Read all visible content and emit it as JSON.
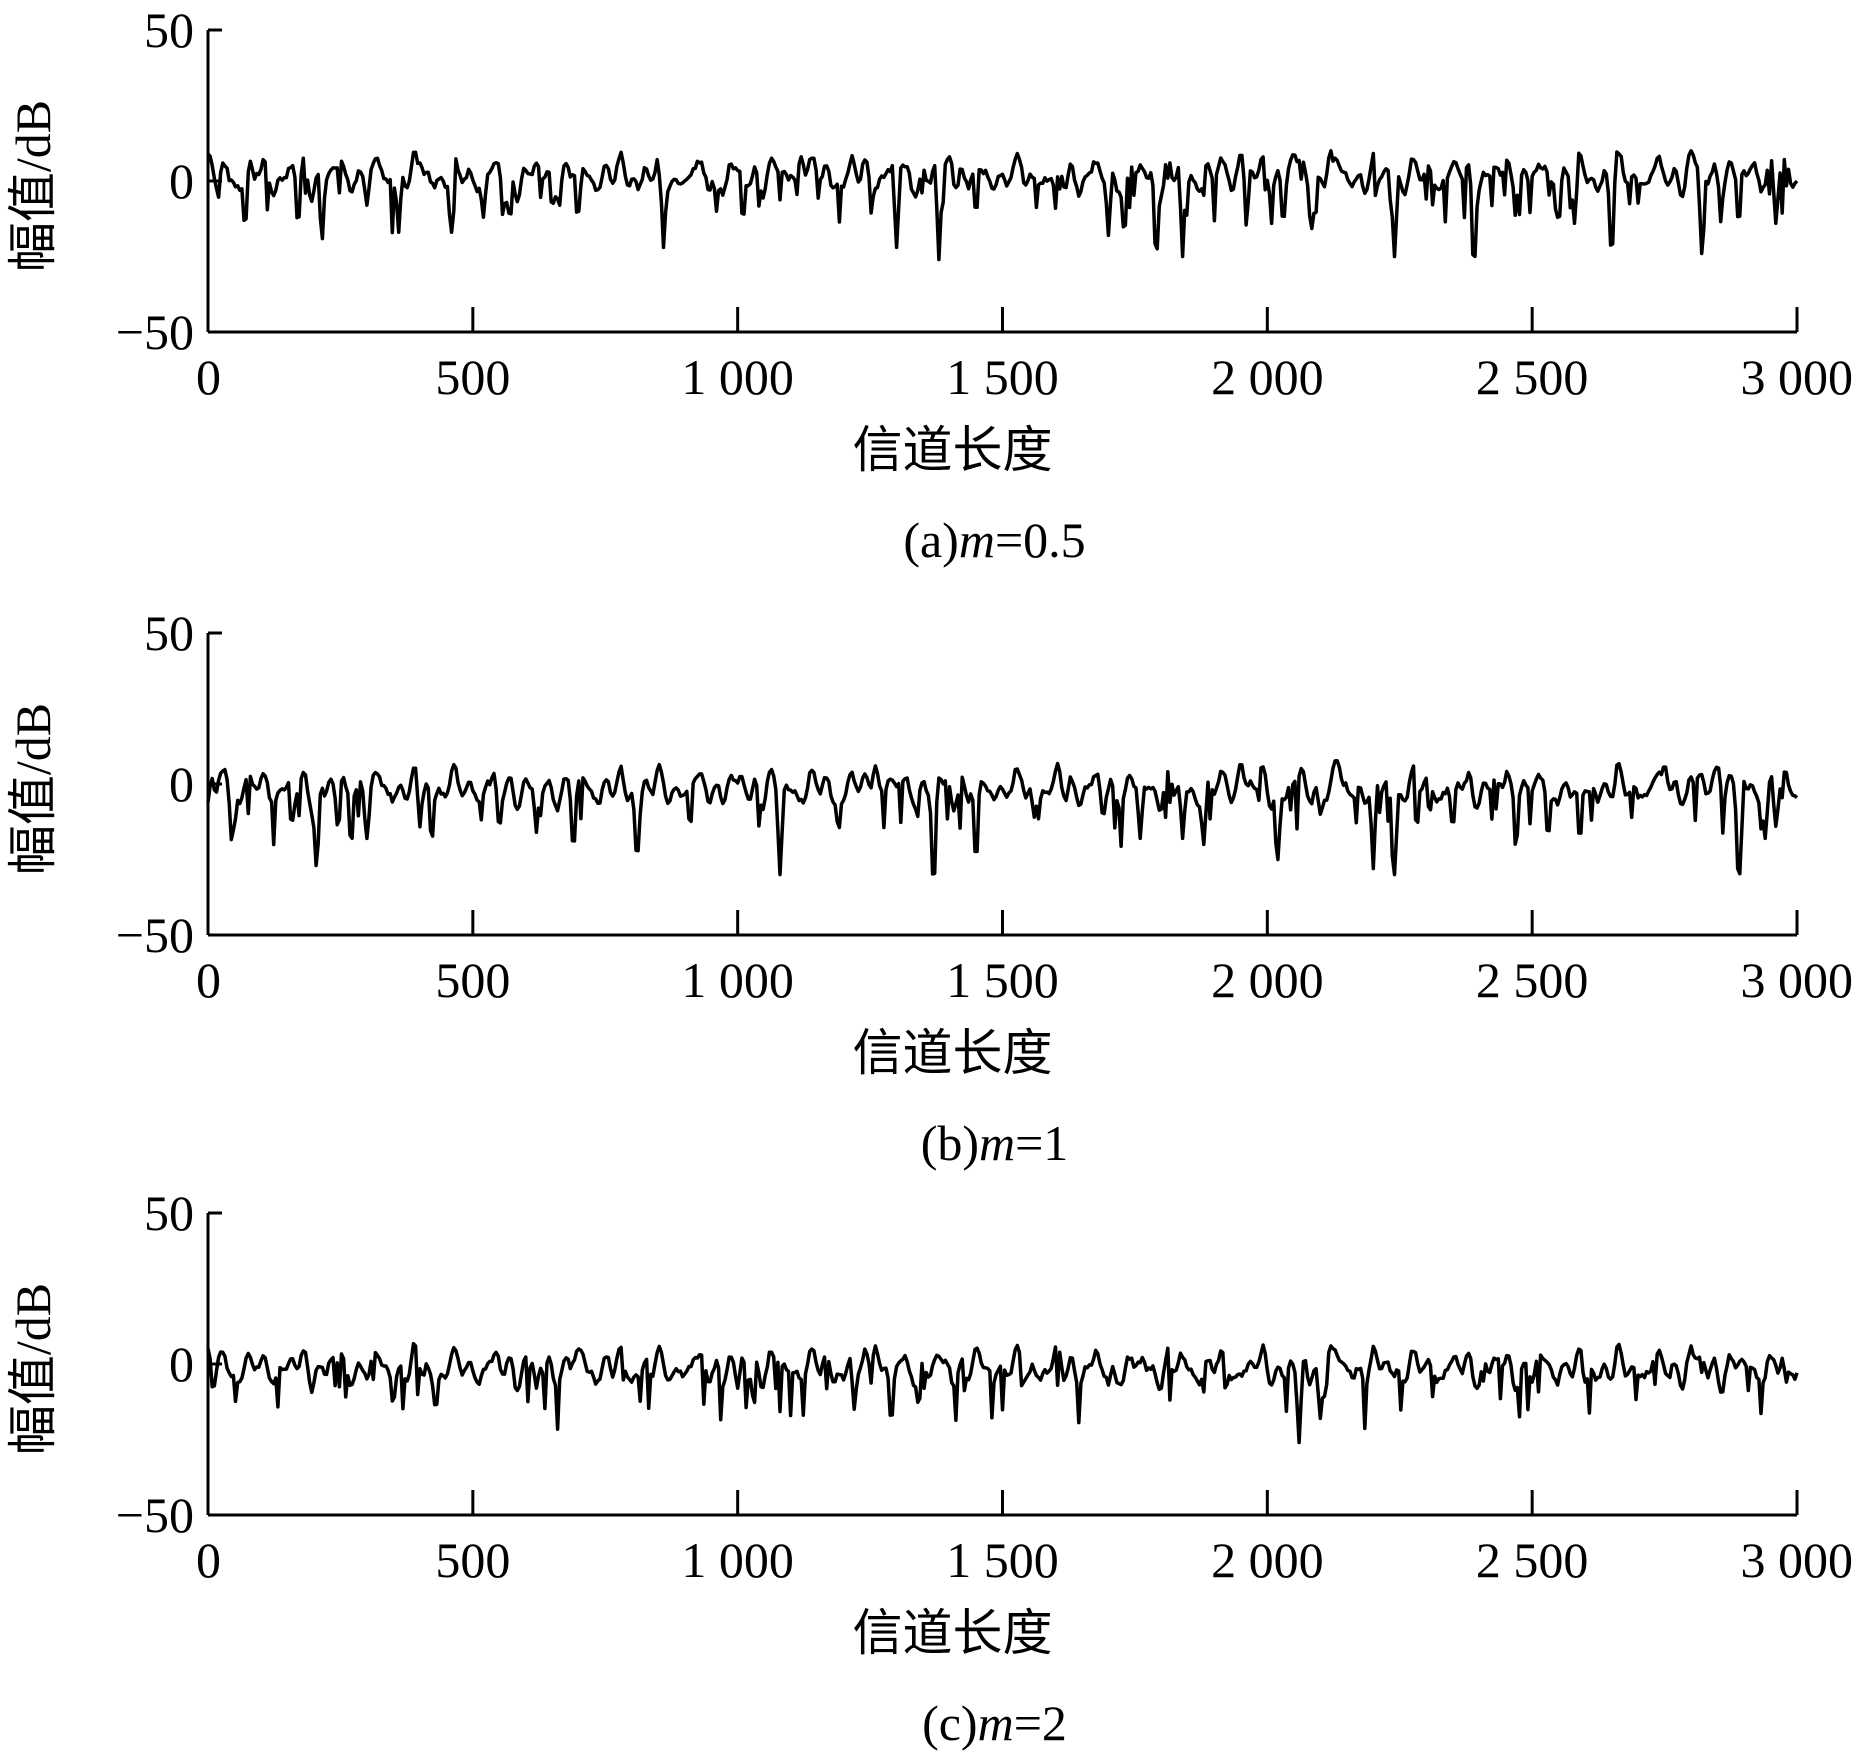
{
  "figure": {
    "panels": [
      {
        "caption_prefix": "(a)",
        "caption_var": "m",
        "caption_suffix": "=0.5"
      },
      {
        "caption_prefix": "(b)",
        "caption_var": "m",
        "caption_suffix": "=1"
      },
      {
        "caption_prefix": "(c)",
        "caption_var": "m",
        "caption_suffix": "=2"
      }
    ]
  },
  "chart_data": [
    {
      "type": "line",
      "xlabel": "信道长度",
      "ylabel": "幅值/dB",
      "xlim": [
        0,
        3000
      ],
      "ylim": [
        -50,
        50
      ],
      "xticks": [
        0,
        500,
        1000,
        1500,
        2000,
        2500,
        3000
      ],
      "xtick_labels": [
        "0",
        "500",
        "1 000",
        "1 500",
        "2 000",
        "2 500",
        "3 000"
      ],
      "yticks": [
        50,
        0,
        -50
      ],
      "ytick_labels": [
        "50",
        "0",
        "−50"
      ],
      "grid": false,
      "series": [
        {
          "color": "#000000",
          "baseline": 3,
          "dips": [
            [
              20,
              -8
            ],
            [
              70,
              -16
            ],
            [
              170,
              -15
            ],
            [
              215,
              -20
            ],
            [
              300,
              -8
            ],
            [
              360,
              -17
            ],
            [
              460,
              -17
            ],
            [
              520,
              -12
            ],
            [
              570,
              -14
            ],
            [
              650,
              -9
            ],
            [
              700,
              -10
            ],
            [
              860,
              -22
            ],
            [
              960,
              -10
            ],
            [
              1010,
              -14
            ],
            [
              1300,
              -22
            ],
            [
              1380,
              -26
            ],
            [
              1450,
              -12
            ],
            [
              1600,
              -9
            ],
            [
              1700,
              -18
            ],
            [
              1730,
              -18
            ],
            [
              1790,
              -25
            ],
            [
              1840,
              -25
            ],
            [
              1960,
              -20
            ],
            [
              2030,
              -14
            ],
            [
              2090,
              -13
            ],
            [
              2240,
              -25
            ],
            [
              2390,
              -29
            ],
            [
              2550,
              -14
            ],
            [
              2580,
              -14
            ],
            [
              2650,
              -25
            ],
            [
              2820,
              -24
            ],
            [
              2890,
              -15
            ],
            [
              2960,
              -14
            ]
          ],
          "peaks": [
            [
              30,
              6
            ],
            [
              400,
              6
            ],
            [
              1120,
              8
            ],
            [
              1400,
              8
            ],
            [
              1950,
              9
            ],
            [
              2050,
              9
            ],
            [
              2120,
              10
            ],
            [
              2800,
              10
            ],
            [
              2920,
              6
            ]
          ]
        }
      ]
    },
    {
      "type": "line",
      "xlabel": "信道长度",
      "ylabel": "幅值/dB",
      "xlim": [
        0,
        3000
      ],
      "ylim": [
        -50,
        50
      ],
      "xticks": [
        0,
        500,
        1000,
        1500,
        2000,
        2500,
        3000
      ],
      "xtick_labels": [
        "0",
        "500",
        "1 000",
        "1 500",
        "2 000",
        "2 500",
        "3 000"
      ],
      "yticks": [
        50,
        0,
        -50
      ],
      "ytick_labels": [
        "50",
        "0",
        "−50"
      ],
      "grid": false,
      "series": [
        {
          "color": "#000000",
          "baseline": 0,
          "dips": [
            [
              0,
              -6
            ],
            [
              45,
              -20
            ],
            [
              160,
              -12
            ],
            [
              205,
              -28
            ],
            [
              245,
              -14
            ],
            [
              300,
              -18
            ],
            [
              400,
              -10
            ],
            [
              550,
              -15
            ],
            [
              620,
              -16
            ],
            [
              690,
              -22
            ],
            [
              810,
              -25
            ],
            [
              1080,
              -30
            ],
            [
              1190,
              -14
            ],
            [
              1370,
              -35
            ],
            [
              1450,
              -27
            ],
            [
              1560,
              -11
            ],
            [
              1690,
              -11
            ],
            [
              1760,
              -18
            ],
            [
              1840,
              -18
            ],
            [
              1880,
              -20
            ],
            [
              2020,
              -25
            ],
            [
              2100,
              -10
            ],
            [
              2200,
              -28
            ],
            [
              2240,
              -30
            ],
            [
              2350,
              -15
            ],
            [
              2530,
              -18
            ],
            [
              2590,
              -20
            ],
            [
              2750,
              -17
            ],
            [
              2890,
              -33
            ],
            [
              2940,
              -18
            ],
            [
              2960,
              -14
            ]
          ],
          "peaks": [
            [
              30,
              5
            ],
            [
              1260,
              6
            ],
            [
              1950,
              7
            ],
            [
              2130,
              8
            ],
            [
              2750,
              7
            ],
            [
              2850,
              6
            ]
          ]
        }
      ]
    },
    {
      "type": "line",
      "xlabel": "信道长度",
      "ylabel": "幅值/dB",
      "xlim": [
        0,
        3000
      ],
      "ylim": [
        -50,
        50
      ],
      "xticks": [
        0,
        500,
        1000,
        1500,
        2000,
        2500,
        3000
      ],
      "xtick_labels": [
        "0",
        "500",
        "1 000",
        "1 500",
        "2 000",
        "2 500",
        "3 000"
      ],
      "yticks": [
        50,
        0,
        -50
      ],
      "ytick_labels": [
        "50",
        "0",
        "−50"
      ],
      "grid": false,
      "series": [
        {
          "color": "#000000",
          "baseline": 0,
          "dips": [
            [
              10,
              -9
            ],
            [
              120,
              -5
            ],
            [
              350,
              -10
            ],
            [
              430,
              -15
            ],
            [
              620,
              -8
            ],
            [
              800,
              -6
            ],
            [
              1000,
              -8
            ],
            [
              1220,
              -15
            ],
            [
              1290,
              -20
            ],
            [
              1540,
              -6
            ],
            [
              1700,
              -7
            ],
            [
              2060,
              -26
            ],
            [
              2100,
              -18
            ],
            [
              2260,
              -5
            ],
            [
              2500,
              -6
            ],
            [
              2600,
              -6
            ],
            [
              2800,
              -13
            ],
            [
              2980,
              -6
            ]
          ],
          "peaks": [
            [
              25,
              4
            ],
            [
              700,
              5
            ],
            [
              1260,
              6
            ],
            [
              2120,
              6
            ],
            [
              2800,
              6
            ]
          ]
        }
      ]
    }
  ]
}
